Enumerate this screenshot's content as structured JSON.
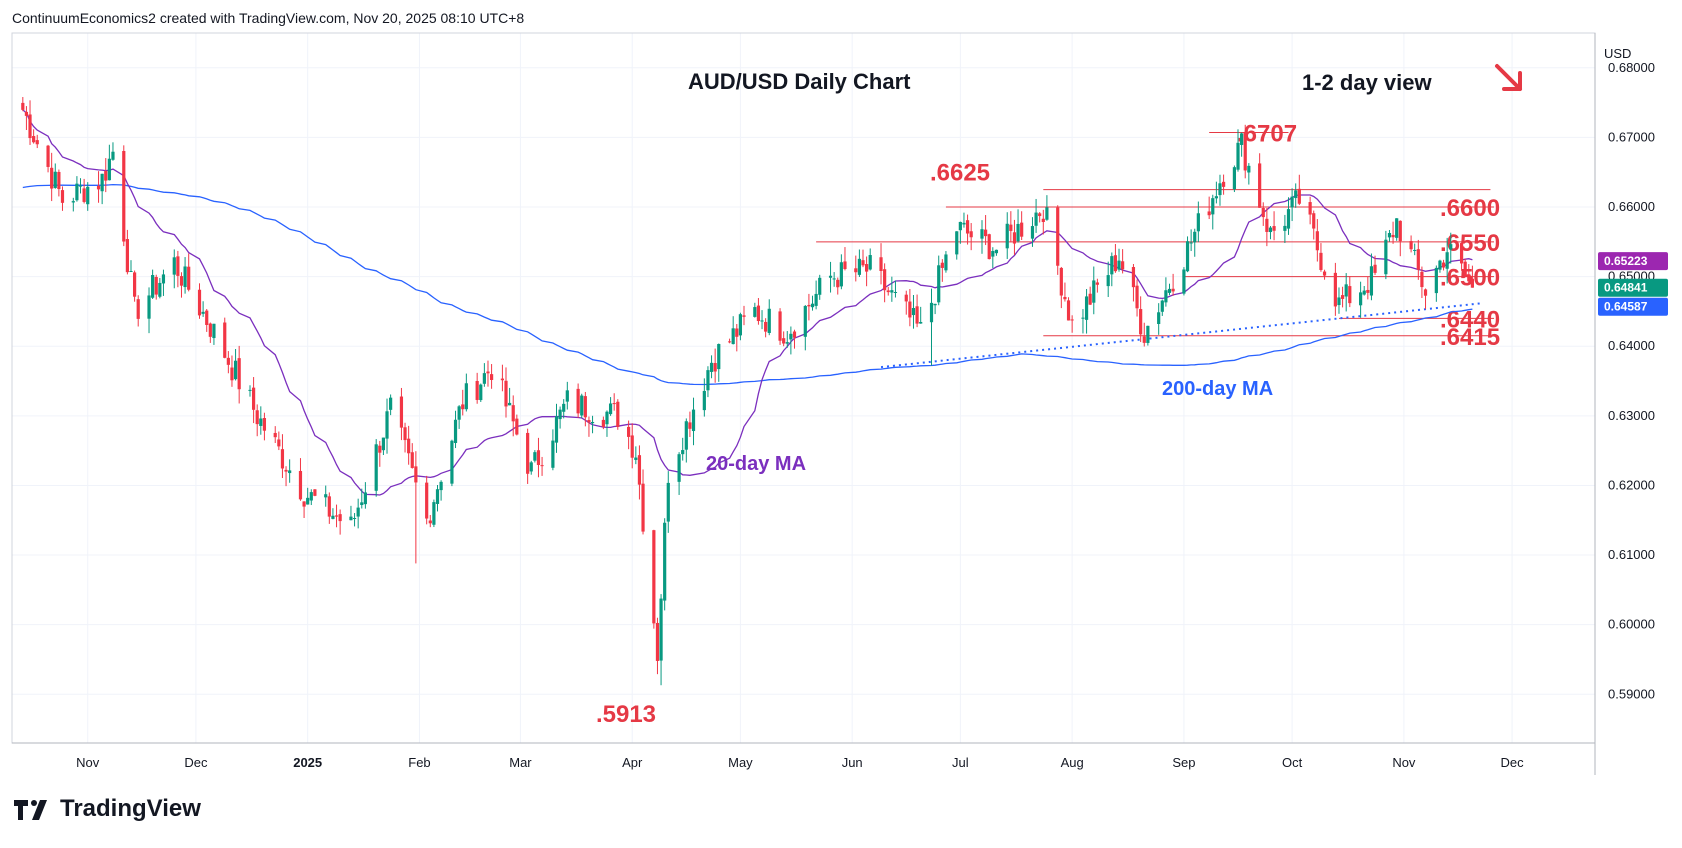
{
  "header": {
    "attribution": "ContinuumEconomics2 created with TradingView.com, Nov 20, 2025 08:10 UTC+8"
  },
  "footer": {
    "brand": "TradingView"
  },
  "axis": {
    "currency": "USD"
  },
  "annotations": {
    "title": "AUD/USD Daily Chart",
    "view": "1-2 day view",
    "ma20_label": "20-day MA",
    "ma200_label": "200-day MA",
    "direction_arrow": "arrow-down-right-icon"
  },
  "colors": {
    "up": "#089981",
    "down": "#f23645",
    "level": "#e53945",
    "ma20": "#7b2fbe",
    "ma200": "#2962ff",
    "trend": "#2962ff"
  },
  "price_tags": [
    {
      "value": "0.65223",
      "color": "#9c27b0"
    },
    {
      "value": "0.64841",
      "color": "#089981"
    },
    {
      "value": "0.64587",
      "color": "#2962ff"
    }
  ],
  "chart_data": {
    "type": "candlestick",
    "title": "AUD/USD Daily Chart",
    "y_ticks": [
      "0.68000",
      "0.67000",
      "0.66000",
      "0.65000",
      "0.64000",
      "0.63000",
      "0.62000",
      "0.61000",
      "0.60000",
      "0.59000"
    ],
    "ylim": [
      0.583,
      0.685
    ],
    "x_ticks": [
      "Nov",
      "Dec",
      "2025",
      "Feb",
      "Mar",
      "Apr",
      "May",
      "Jun",
      "Jul",
      "Aug",
      "Sep",
      "Oct",
      "Nov",
      "Dec"
    ],
    "levels": [
      {
        "label": ".6707",
        "value": 0.6707
      },
      {
        "label": ".6625",
        "value": 0.6625
      },
      {
        "label": ".6600",
        "value": 0.66
      },
      {
        "label": ".6550",
        "value": 0.655
      },
      {
        "label": ".6500",
        "value": 0.65
      },
      {
        "label": ".6440",
        "value": 0.644
      },
      {
        "label": ".6415",
        "value": 0.6415
      },
      {
        "label": ".5913",
        "value": 0.5913
      }
    ],
    "closes_anchor": [
      [
        "2024-10-14",
        0.674
      ],
      [
        "2024-10-25",
        0.661
      ],
      [
        "2024-11-05",
        0.664
      ],
      [
        "2024-11-08",
        0.668
      ],
      [
        "2024-11-14",
        0.645
      ],
      [
        "2024-11-25",
        0.652
      ],
      [
        "2024-12-06",
        0.642
      ],
      [
        "2024-12-18",
        0.63
      ],
      [
        "2024-12-31",
        0.619
      ],
      [
        "2025-01-13",
        0.614
      ],
      [
        "2025-01-24",
        0.631
      ],
      [
        "2025-02-03",
        0.615
      ],
      [
        "2025-02-13",
        0.632
      ],
      [
        "2025-02-21",
        0.637
      ],
      [
        "2025-03-04",
        0.622
      ],
      [
        "2025-03-14",
        0.632
      ],
      [
        "2025-03-28",
        0.63
      ],
      [
        "2025-04-02",
        0.625
      ],
      [
        "2025-04-08",
        0.596
      ],
      [
        "2025-04-11",
        0.622
      ],
      [
        "2025-04-23",
        0.638
      ],
      [
        "2025-05-05",
        0.645
      ],
      [
        "2025-05-14",
        0.642
      ],
      [
        "2025-05-26",
        0.65
      ],
      [
        "2025-06-06",
        0.651
      ],
      [
        "2025-06-20",
        0.642
      ],
      [
        "2025-06-30",
        0.657
      ],
      [
        "2025-07-11",
        0.654
      ],
      [
        "2025-07-24",
        0.66
      ],
      [
        "2025-08-01",
        0.643
      ],
      [
        "2025-08-14",
        0.653
      ],
      [
        "2025-08-21",
        0.642
      ],
      [
        "2025-09-02",
        0.654
      ],
      [
        "2025-09-12",
        0.665
      ],
      [
        "2025-09-17",
        0.669
      ],
      [
        "2025-09-25",
        0.656
      ],
      [
        "2025-10-03",
        0.661
      ],
      [
        "2025-10-14",
        0.646
      ],
      [
        "2025-10-24",
        0.65
      ],
      [
        "2025-10-30",
        0.658
      ],
      [
        "2025-11-07",
        0.648
      ],
      [
        "2025-11-13",
        0.654
      ],
      [
        "2025-11-20",
        0.6484
      ]
    ],
    "ma20_current": 0.65223,
    "ma200_current": 0.64587,
    "last_close": 0.64841
  }
}
